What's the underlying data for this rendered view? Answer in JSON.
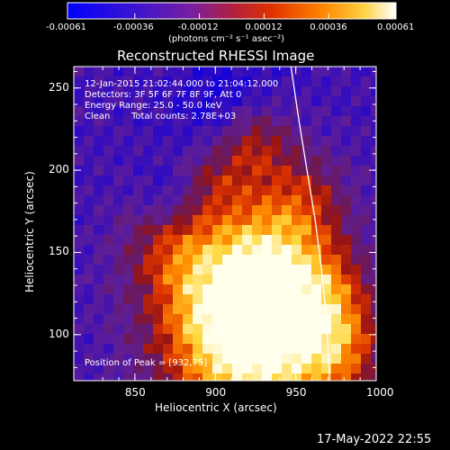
{
  "chart_data": {
    "type": "heatmap",
    "title": "Reconstructed RHESSI Image",
    "xlabel": "Heliocentric X (arcsec)",
    "ylabel": "Heliocentric Y (arcsec)",
    "xlim": [
      812,
      1000
    ],
    "ylim": [
      72,
      263
    ],
    "x_ticks": [
      850,
      900,
      950,
      1000
    ],
    "y_ticks": [
      100,
      150,
      200,
      250
    ],
    "colorbar": {
      "label": "(photons cm⁻² s⁻¹ asec⁻²)",
      "ticks": [
        "-0.00061",
        "-0.00036",
        "-0.00012",
        "0.00012",
        "0.00036",
        "0.00061"
      ],
      "range": [
        -0.00061,
        0.00061
      ],
      "colors": [
        "#0000ff",
        "#5a1aa0",
        "#9a2080",
        "#d42808",
        "#ff7000",
        "#ffc820",
        "#ffffff"
      ]
    },
    "annotations": {
      "time": "12-Jan-2015 21:02:44.000 to 21:04:12.000",
      "detectors": "Detectors: 3F 5F 6F 7F 8F 9F, Att 0",
      "energy": "Energy Range: 25.0 - 50.0 keV",
      "method": "Clean",
      "counts": "Total counts: 2.78E+03",
      "peak": "Position of Peak = [932,75]"
    },
    "limb_curve": [
      [
        947,
        263
      ],
      [
        952,
        230
      ],
      [
        957,
        200
      ],
      [
        962,
        170
      ],
      [
        966,
        140
      ],
      [
        969,
        110
      ],
      [
        971,
        72
      ]
    ]
  },
  "footer": {
    "timestamp": "17-May-2022 22:55"
  }
}
